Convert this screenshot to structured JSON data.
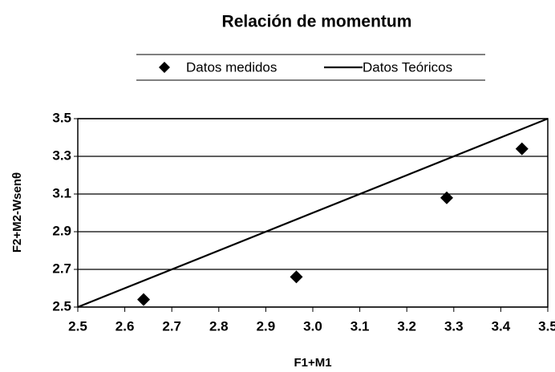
{
  "chart_data": {
    "type": "scatter",
    "title": "Relación de momentum",
    "xlabel": "F1+M1",
    "ylabel": "F2+M2-Wsenθ",
    "series": [
      {
        "name": "Datos medidos",
        "type": "scatter",
        "marker": "diamond",
        "color": "#000000",
        "x": [
          2.64,
          2.965,
          3.285,
          3.445
        ],
        "values": [
          2.54,
          2.66,
          3.08,
          3.34
        ]
      },
      {
        "name": "Datos Teóricos",
        "type": "line",
        "color": "#000000",
        "x": [
          2.5,
          3.5
        ],
        "values": [
          2.5,
          3.5
        ]
      }
    ],
    "xlim": [
      2.5,
      3.5
    ],
    "xticks": [
      2.5,
      2.6,
      2.7,
      2.8,
      2.9,
      {
        "value": 3,
        "label": "3.0"
      },
      3.1,
      3.2,
      3.3,
      3.4,
      3.5
    ],
    "ylim": [
      2.5,
      3.5
    ],
    "yticks": [
      2.5,
      2.7,
      2.9,
      3.1,
      3.3,
      3.5
    ],
    "grid": true,
    "legend": "top"
  }
}
